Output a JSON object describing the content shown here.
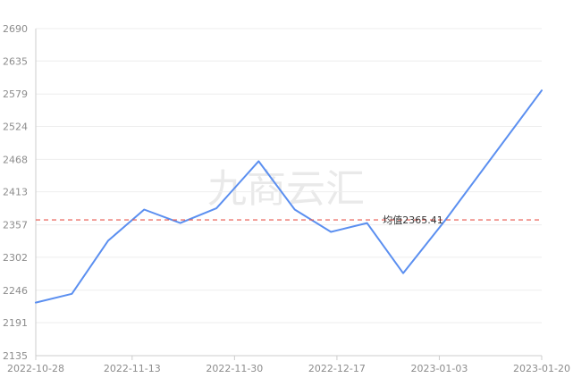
{
  "watermark": "九商云汇",
  "colors": {
    "line": "#5b8ff0",
    "average_line": "#e8534a",
    "grid": "#eeeeee",
    "axis": "#cccccc",
    "tick_text": "#8c8c8c"
  },
  "chart_data": {
    "type": "line",
    "title": "",
    "xlabel": "",
    "ylabel": "",
    "grid": true,
    "legend": "none",
    "ylim": [
      2135,
      2690
    ],
    "y_ticks": [
      "2135",
      "2191",
      "2246",
      "2302",
      "2357",
      "2413",
      "2468",
      "2524",
      "2579",
      "2635",
      "2690"
    ],
    "x_ticks": [
      "2022-10-28",
      "2022-11-13",
      "2022-11-30",
      "2022-12-17",
      "2023-01-03",
      "2023-01-20"
    ],
    "x": [
      "2022-10-28",
      "2022-11-03",
      "2022-11-09",
      "2022-11-15",
      "2022-11-21",
      "2022-11-27",
      "2022-12-04",
      "2022-12-10",
      "2022-12-16",
      "2022-12-22",
      "2022-12-28",
      "2023-01-04",
      "2023-01-20"
    ],
    "series": [
      {
        "values": [
          2225,
          2240,
          2330,
          2383,
          2360,
          2385,
          2465,
          2383,
          2345,
          2360,
          2275,
          2365,
          2585
        ]
      }
    ],
    "average": {
      "value": 2365.41,
      "label": "均值2365.41"
    }
  }
}
